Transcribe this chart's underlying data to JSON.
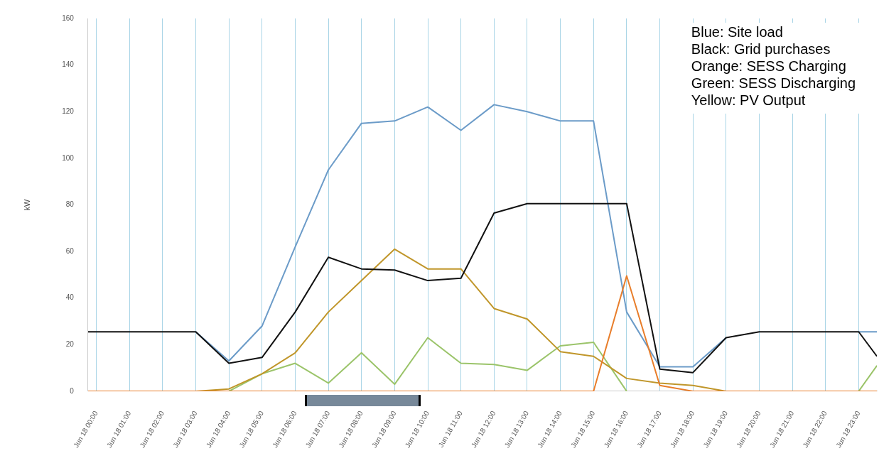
{
  "chart_data": {
    "type": "line",
    "ylabel": "kW",
    "x": [
      "--06-17T23:45",
      "--06-18T00:00",
      "--06-18T01:00",
      "--06-18T02:00",
      "--06-18T03:00",
      "--06-18T04:00",
      "--06-18T05:00",
      "--06-18T06:00",
      "--06-18T07:00",
      "--06-18T08:00",
      "--06-18T09:00",
      "--06-18T10:00",
      "--06-18T11:00",
      "--06-18T12:00",
      "--06-18T13:00",
      "--06-18T14:00",
      "--06-18T15:00",
      "--06-18T16:00",
      "--06-18T17:00",
      "--06-18T18:00",
      "--06-18T19:00",
      "--06-18T20:00",
      "--06-18T21:00",
      "--06-18T22:00",
      "--06-18T23:00",
      "--06-18T23:33"
    ],
    "series": [
      {
        "color": "#9bc46a",
        "values": [
          null,
          null,
          null,
          null,
          null,
          0,
          7.5,
          12,
          3.5,
          16.5,
          3,
          23,
          12,
          11.5,
          9,
          19.5,
          21,
          0,
          null,
          null,
          null,
          null,
          null,
          null,
          0,
          11
        ]
      },
      {
        "color": "#c0962a",
        "values": [
          null,
          null,
          null,
          null,
          0,
          1,
          7.5,
          16.5,
          34,
          47.5,
          61,
          52.5,
          52.5,
          35.5,
          31,
          17,
          15,
          5.5,
          3.5,
          2.5,
          0,
          null,
          null,
          null,
          null,
          null
        ]
      },
      {
        "color": "#6b9bc8",
        "values": [
          null,
          null,
          null,
          null,
          25.5,
          13,
          28,
          62,
          95,
          115,
          116,
          122,
          112,
          123,
          120,
          116,
          116,
          34,
          10.5,
          10.5,
          23,
          null,
          null,
          null,
          25.5,
          25.5
        ]
      },
      {
        "color": "#111111",
        "values": [
          25.5,
          25.5,
          25.5,
          25.5,
          25.5,
          12,
          14.5,
          34,
          57.5,
          52.5,
          52,
          47.5,
          48.5,
          76.5,
          80.5,
          80.5,
          80.5,
          80.5,
          9.5,
          8,
          23,
          25.5,
          25.5,
          25.5,
          25.5,
          15
        ]
      },
      {
        "color": "#e87d2a",
        "values": [
          0,
          0,
          0,
          0,
          0,
          0,
          0,
          0,
          0,
          0,
          0,
          0,
          0,
          0,
          0,
          0,
          0,
          49.5,
          2.5,
          0,
          0,
          0,
          0,
          0,
          0,
          0
        ]
      }
    ],
    "xlim": [
      "--06-17T23:45",
      "--06-18T23:33"
    ],
    "xticks": [
      {
        "value": "--06-18T00:00",
        "label": "Jun 18 00:00"
      },
      {
        "value": "--06-18T01:00",
        "label": "Jun 18 01:00"
      },
      {
        "value": "--06-18T02:00",
        "label": "Jun 18 02:00"
      },
      {
        "value": "--06-18T03:00",
        "label": "Jun 18 03:00"
      },
      {
        "value": "--06-18T04:00",
        "label": "Jun 18 04:00"
      },
      {
        "value": "--06-18T05:00",
        "label": "Jun 18 05:00"
      },
      {
        "value": "--06-18T06:00",
        "label": "Jun 18 06:00"
      },
      {
        "value": "--06-18T07:00",
        "label": "Jun 18 07:00"
      },
      {
        "value": "--06-18T08:00",
        "label": "Jun 18 08:00"
      },
      {
        "value": "--06-18T09:00",
        "label": "Jun 18 09:00"
      },
      {
        "value": "--06-18T10:00",
        "label": "Jun 18 10:00"
      },
      {
        "value": "--06-18T11:00",
        "label": "Jun 18 11:00"
      },
      {
        "value": "--06-18T12:00",
        "label": "Jun 18 12:00"
      },
      {
        "value": "--06-18T13:00",
        "label": "Jun 18 13:00"
      },
      {
        "value": "--06-18T14:00",
        "label": "Jun 18 14:00"
      },
      {
        "value": "--06-18T15:00",
        "label": "Jun 18 15:00"
      },
      {
        "value": "--06-18T16:00",
        "label": "Jun 18 16:00"
      },
      {
        "value": "--06-18T17:00",
        "label": "Jun 18 17:00"
      },
      {
        "value": "--06-18T18:00",
        "label": "Jun 18 18:00"
      },
      {
        "value": "--06-18T19:00",
        "label": "Jun 18 19:00"
      },
      {
        "value": "--06-18T20:00",
        "label": "Jun 18 20:00"
      },
      {
        "value": "--06-18T21:00",
        "label": "Jun 18 21:00"
      },
      {
        "value": "--06-18T22:00",
        "label": "Jun 18 22:00"
      },
      {
        "value": "--06-18T23:00",
        "label": "Jun 18 23:00"
      }
    ],
    "ylim": [
      0,
      160
    ],
    "yticks": [
      0,
      20,
      40,
      60,
      80,
      100,
      120,
      140,
      160
    ],
    "grid": "x",
    "legend": false,
    "marker": "none",
    "line_style": "solid",
    "annotations": [
      "Blue: Site load",
      "Black: Grid purchases",
      "Orange: SESS Charging",
      "Green: SESS Discharging",
      "Yellow: PV Output"
    ]
  }
}
